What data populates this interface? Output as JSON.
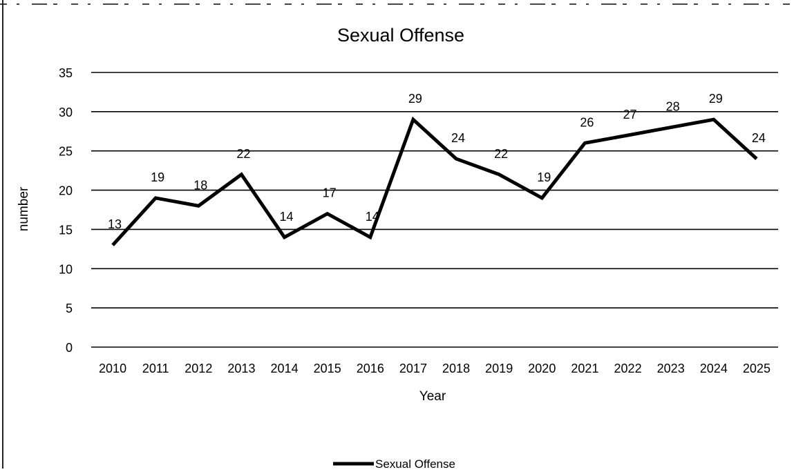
{
  "chart_data": {
    "type": "line",
    "title": "Sexual Offense",
    "xlabel": "Year",
    "ylabel": "number",
    "categories": [
      "2010",
      "2011",
      "2012",
      "2013",
      "2014",
      "2015",
      "2016",
      "2017",
      "2018",
      "2019",
      "2020",
      "2021",
      "2022",
      "2023",
      "2024",
      "2025"
    ],
    "series": [
      {
        "name": "Sexual Offense",
        "values": [
          13,
          19,
          18,
          22,
          14,
          17,
          14,
          29,
          24,
          22,
          19,
          26,
          27,
          28,
          29,
          24
        ]
      }
    ],
    "ylim": [
      0,
      35
    ],
    "yticks": [
      0,
      5,
      10,
      15,
      20,
      25,
      30,
      35
    ],
    "grid": true,
    "legend_position": "bottom",
    "data_labels": true,
    "line_color": "#000000"
  }
}
